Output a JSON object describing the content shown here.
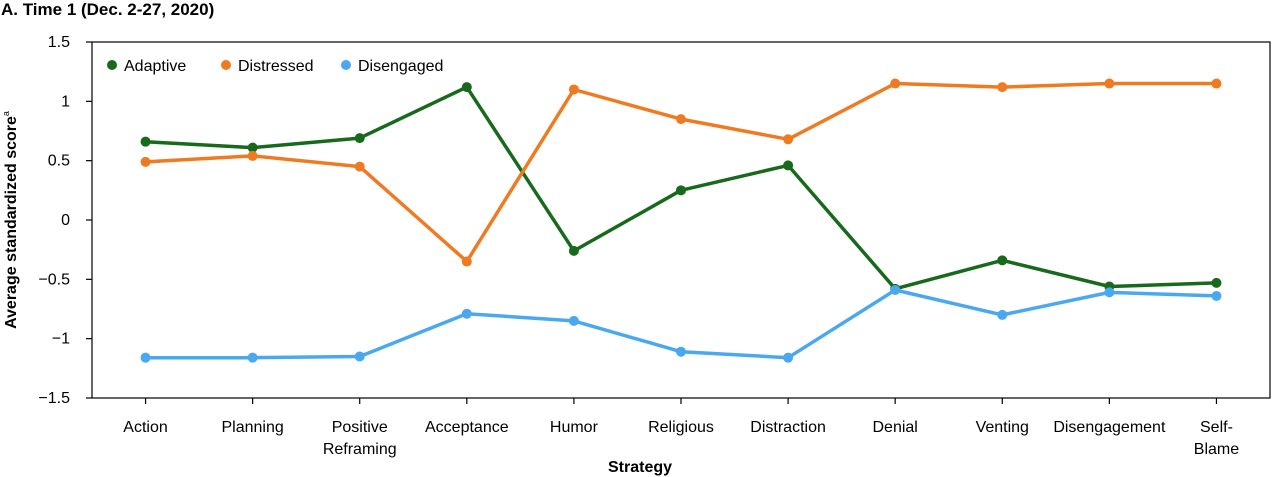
{
  "chart_data": {
    "type": "line",
    "title": "A. Time 1 (Dec. 2-27, 2020)",
    "xlabel": "Strategy",
    "ylabel": "Average standardized score",
    "ylabel_superscript": "a",
    "ylim": [
      -1.5,
      1.5
    ],
    "yticks": [
      "1.5",
      "1",
      "0.5",
      "0",
      "−0.5",
      "−1",
      "−1.5"
    ],
    "ytick_values": [
      1.5,
      1,
      0.5,
      0,
      -0.5,
      -1,
      -1.5
    ],
    "grid": false,
    "legend_position": "top-left",
    "categories": [
      [
        "Action"
      ],
      [
        "Planning"
      ],
      [
        "Positive",
        "Reframing"
      ],
      [
        "Acceptance"
      ],
      [
        "Humor"
      ],
      [
        "Religious"
      ],
      [
        "Distraction"
      ],
      [
        "Denial"
      ],
      [
        "Venting"
      ],
      [
        "Disengagement"
      ],
      [
        "Self-",
        "Blame"
      ]
    ],
    "series": [
      {
        "name": "Adaptive",
        "color": "#176a1c",
        "values": [
          0.66,
          0.61,
          0.69,
          1.12,
          -0.26,
          0.25,
          0.46,
          -0.58,
          -0.34,
          -0.56,
          -0.53
        ]
      },
      {
        "name": "Distressed",
        "color": "#f07a22",
        "values": [
          0.49,
          0.54,
          0.45,
          -0.35,
          1.1,
          0.85,
          0.68,
          1.15,
          1.12,
          1.15,
          1.15
        ]
      },
      {
        "name": "Disengaged",
        "color": "#4aa8f0",
        "values": [
          -1.16,
          -1.16,
          -1.15,
          -0.79,
          -0.85,
          -1.11,
          -1.16,
          -0.59,
          -0.8,
          -0.61,
          -0.64
        ]
      }
    ]
  }
}
